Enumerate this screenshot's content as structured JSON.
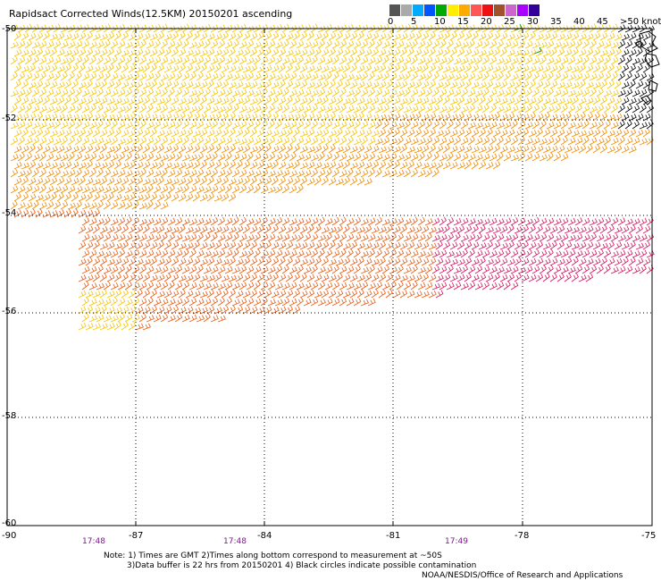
{
  "title": "Rapidsact Corrected Winds(12.5KM) 20150201 ascending",
  "legend": {
    "ticks": [
      "0",
      "5",
      "10",
      "15",
      "20",
      "25",
      "30",
      "35",
      "40",
      "45",
      ">50 knots"
    ],
    "colors": [
      "#555555",
      "#aaaaaa",
      "#00aaff",
      "#0055ff",
      "#00aa00",
      "#ffee00",
      "#ffaa00",
      "#ff5555",
      "#ee1111",
      "#a0522d",
      "#cc66cc",
      "#aa00ff",
      "#330099"
    ]
  },
  "axes": {
    "lat_labels": [
      "-50",
      "-52",
      "-54",
      "-56",
      "-58",
      "-60"
    ],
    "lon_labels": [
      "-90",
      "-87",
      "-84",
      "-81",
      "-78",
      "-75"
    ]
  },
  "times": [
    "17:48",
    "17:48",
    "17:49"
  ],
  "notes": {
    "line1": "Note: 1) Times are GMT 2)Times along bottom correspond to measurement at ~50S",
    "line2": "3)Data buffer is 22 hrs from 20150201 4) Black circles indicate possible contamination",
    "credit": "NOAA/NESDIS/Office of Research and Applications"
  },
  "map_colors": {
    "upper_swath": "#f5c400",
    "mid_swath": "#f08a00",
    "lower_swath": "#e85a10",
    "high_wind": "#d4145a",
    "land_barbs": "#000000",
    "green_barb": "#009900"
  }
}
